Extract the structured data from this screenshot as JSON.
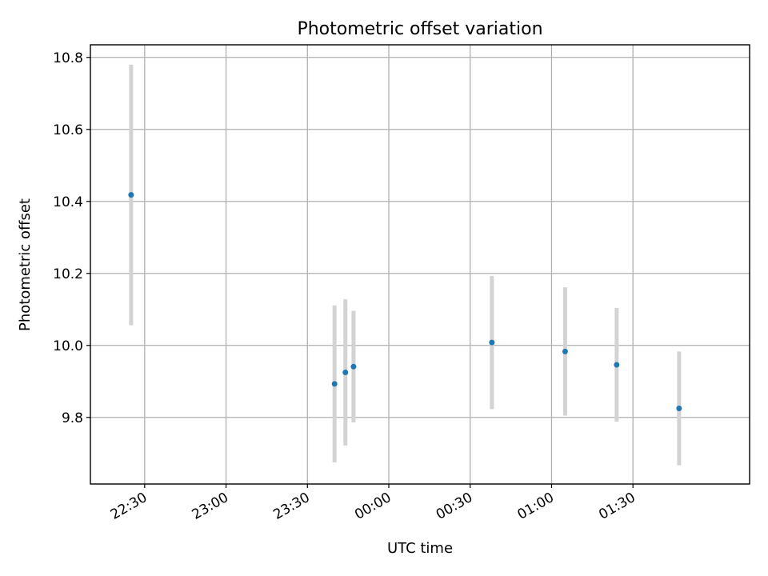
{
  "chart_data": {
    "type": "scatter",
    "title": "Photometric offset variation",
    "xlabel": "UTC time",
    "ylabel": "Photometric offset",
    "x_type": "time",
    "xlim": [
      "22:10",
      "02:13"
    ],
    "ylim": [
      9.615,
      10.835
    ],
    "grid": true,
    "x_ticks": [
      "22:30",
      "23:00",
      "23:30",
      "00:00",
      "00:30",
      "01:00",
      "01:30"
    ],
    "y_ticks": [
      "9.8",
      "10.0",
      "10.2",
      "10.4",
      "10.6",
      "10.8"
    ],
    "y_tick_values": [
      9.8,
      10.0,
      10.2,
      10.4,
      10.6,
      10.8
    ],
    "colors": {
      "point": "#1f77b4",
      "error_bar": "#d3d3d3"
    },
    "series": [
      {
        "points": [
          {
            "x": "22:25",
            "y": 10.418,
            "err": 0.362
          },
          {
            "x": "23:40",
            "y": 9.893,
            "err": 0.218
          },
          {
            "x": "23:44",
            "y": 9.925,
            "err": 0.203
          },
          {
            "x": "23:47",
            "y": 9.941,
            "err": 0.155
          },
          {
            "x": "00:38",
            "y": 10.008,
            "err": 0.185
          },
          {
            "x": "01:05",
            "y": 9.983,
            "err": 0.178
          },
          {
            "x": "01:24",
            "y": 9.946,
            "err": 0.158
          },
          {
            "x": "01:47",
            "y": 9.825,
            "err": 0.158
          }
        ]
      }
    ]
  }
}
